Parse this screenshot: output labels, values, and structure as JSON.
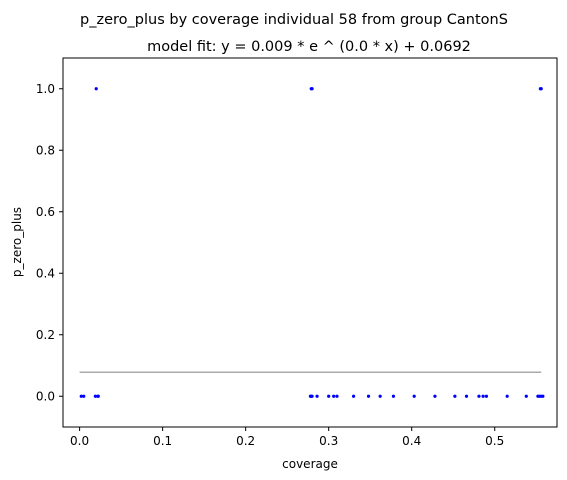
{
  "chart_data": {
    "type": "scatter",
    "title": "p_zero_plus by coverage individual 58 from group CantonS",
    "subtitle": "model fit: y = 0.009 * e ^ (0.0 * x) + 0.0692",
    "xlabel": "coverage",
    "ylabel": "p_zero_plus",
    "xlim": [
      -0.02,
      0.575
    ],
    "ylim": [
      -0.1,
      1.1
    ],
    "xticks": [
      0.0,
      0.1,
      0.2,
      0.3,
      0.4,
      0.5
    ],
    "xtick_labels": [
      "0.0",
      "0.1",
      "0.2",
      "0.3",
      "0.4",
      "0.5"
    ],
    "yticks": [
      0.0,
      0.2,
      0.4,
      0.6,
      0.8,
      1.0
    ],
    "ytick_labels": [
      "0.0",
      "0.2",
      "0.4",
      "0.6",
      "0.8",
      "1.0"
    ],
    "grid": false,
    "colors": {
      "points": "#0000ff",
      "fit": "#aaaaaa"
    },
    "points": {
      "x": [
        0.002,
        0.005,
        0.019,
        0.022,
        0.0225,
        0.278,
        0.279,
        0.28,
        0.286,
        0.3,
        0.306,
        0.31,
        0.33,
        0.348,
        0.362,
        0.378,
        0.403,
        0.428,
        0.452,
        0.466,
        0.481,
        0.486,
        0.49,
        0.515,
        0.538,
        0.552,
        0.554,
        0.556,
        0.558,
        0.02,
        0.279,
        0.28,
        0.555,
        0.556
      ],
      "y": [
        0,
        0,
        0,
        0,
        0,
        0,
        0,
        0,
        0,
        0,
        0,
        0,
        0,
        0,
        0,
        0,
        0,
        0,
        0,
        0,
        0,
        0,
        0,
        0,
        0,
        0,
        0,
        0,
        0,
        1,
        1,
        1,
        1,
        1
      ]
    },
    "fit_line": {
      "x": [
        0.0,
        0.556
      ],
      "y": [
        0.0782,
        0.0782
      ]
    }
  }
}
